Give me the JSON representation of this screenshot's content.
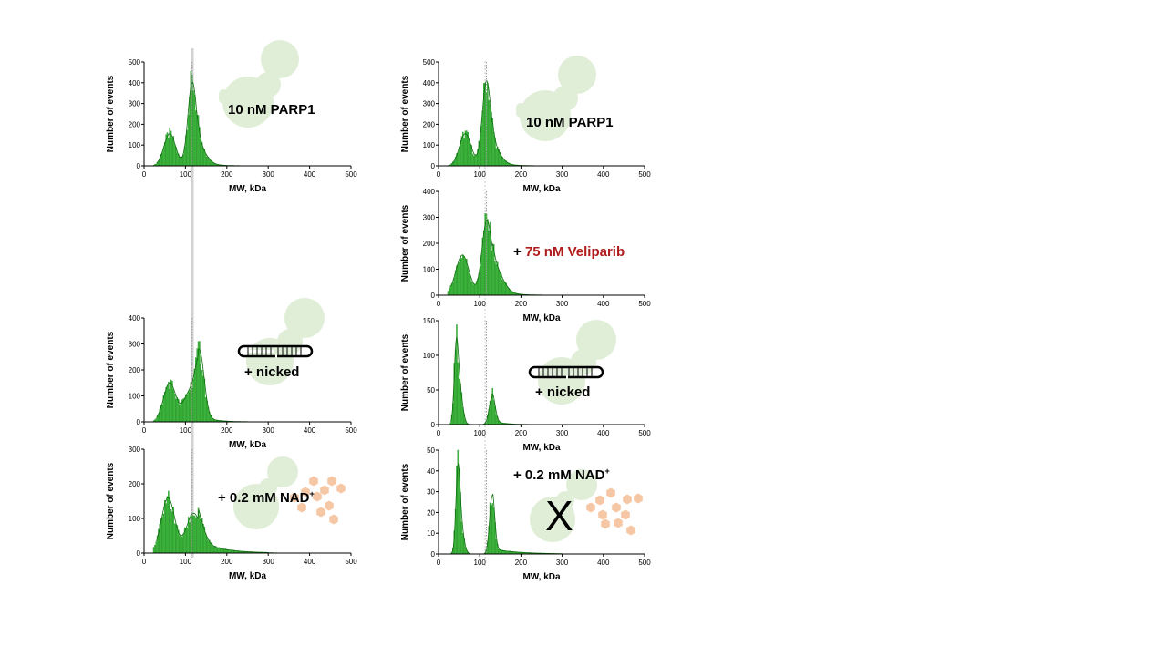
{
  "chart_data": [
    {
      "id": "left-top",
      "type": "bar",
      "xlabel": "MW, kDa",
      "ylabel": "Number of events",
      "xlim": [
        0,
        500
      ],
      "ylim": [
        0,
        500
      ],
      "xticks": [
        "0",
        "100",
        "200",
        "300",
        "400",
        "500"
      ],
      "yticks": [
        "0",
        "100",
        "200",
        "300",
        "400",
        "500"
      ],
      "reference_line_x": 116,
      "annotations": [
        {
          "text": "10 nM PARP1",
          "color": "#000000"
        }
      ],
      "peaks": [
        {
          "x": 62,
          "height": 155,
          "width": 14
        },
        {
          "x": 116,
          "height": 345,
          "width": 10
        },
        {
          "x": 130,
          "height": 80,
          "width": 18
        }
      ],
      "tail": {
        "height": 25,
        "decay": 28
      }
    },
    {
      "id": "right-top",
      "type": "bar",
      "xlabel": "MW, kDa",
      "ylabel": "Number of events",
      "xlim": [
        0,
        500
      ],
      "ylim": [
        0,
        500
      ],
      "xticks": [
        "0",
        "100",
        "200",
        "300",
        "400",
        "500"
      ],
      "yticks": [
        "0",
        "100",
        "200",
        "300",
        "400",
        "500"
      ],
      "reference_line_x": 116,
      "annotations": [
        {
          "text": "10 nM PARP1",
          "color": "#000000"
        }
      ],
      "peaks": [
        {
          "x": 65,
          "height": 155,
          "width": 14
        },
        {
          "x": 116,
          "height": 350,
          "width": 10
        },
        {
          "x": 130,
          "height": 80,
          "width": 18
        }
      ],
      "tail": {
        "height": 25,
        "decay": 28
      }
    },
    {
      "id": "right-veliparib",
      "type": "bar",
      "xlabel": "MW, kDa",
      "ylabel": "Number of events",
      "xlim": [
        0,
        500
      ],
      "ylim": [
        0,
        400
      ],
      "xticks": [
        "0",
        "100",
        "200",
        "300",
        "400",
        "500"
      ],
      "yticks": [
        "0",
        "100",
        "200",
        "300",
        "400"
      ],
      "reference_line_x": 116,
      "annotations": [
        {
          "text": "+ ",
          "color": "#000000"
        },
        {
          "text": "75 nM Veliparib",
          "color": "#b01c1c"
        }
      ],
      "peaks": [
        {
          "x": 58,
          "height": 155,
          "width": 16
        },
        {
          "x": 116,
          "height": 230,
          "width": 11
        },
        {
          "x": 135,
          "height": 90,
          "width": 20
        }
      ],
      "tail": {
        "height": 30,
        "decay": 30
      }
    },
    {
      "id": "left-nicked",
      "type": "bar",
      "xlabel": "MW, kDa",
      "ylabel": "Number of events",
      "xlim": [
        0,
        500
      ],
      "ylim": [
        0,
        400
      ],
      "xticks": [
        "0",
        "100",
        "200",
        "300",
        "400",
        "500"
      ],
      "yticks": [
        "0",
        "100",
        "200",
        "300",
        "400"
      ],
      "reference_line_x": 116,
      "annotations": [
        {
          "text": "+ nicked",
          "color": "#000000"
        }
      ],
      "peaks": [
        {
          "x": 62,
          "height": 150,
          "width": 15
        },
        {
          "x": 110,
          "height": 110,
          "width": 15
        },
        {
          "x": 135,
          "height": 225,
          "width": 11
        }
      ],
      "tail": {
        "height": 28,
        "decay": 30
      }
    },
    {
      "id": "right-nicked",
      "type": "bar",
      "xlabel": "MW, kDa",
      "ylabel": "Number of events",
      "xlim": [
        0,
        500
      ],
      "ylim": [
        0,
        150
      ],
      "xticks": [
        "0",
        "100",
        "200",
        "300",
        "400",
        "500"
      ],
      "yticks": [
        "0",
        "50",
        "100",
        "150"
      ],
      "reference_line_x": 116,
      "annotations": [
        {
          "text": "+ nicked",
          "color": "#000000"
        }
      ],
      "peaks": [
        {
          "x": 43,
          "height": 105,
          "width": 5
        },
        {
          "x": 52,
          "height": 45,
          "width": 7
        },
        {
          "x": 130,
          "height": 40,
          "width": 7
        }
      ],
      "tail": {
        "height": 6,
        "decay": 25
      }
    },
    {
      "id": "left-nad",
      "type": "bar",
      "xlabel": "MW, kDa",
      "ylabel": "Number of events",
      "xlim": [
        0,
        500
      ],
      "ylim": [
        0,
        300
      ],
      "xticks": [
        "0",
        "100",
        "200",
        "300",
        "400",
        "500"
      ],
      "yticks": [
        "0",
        "100",
        "200",
        "300"
      ],
      "reference_line_x": 116,
      "annotations": [
        {
          "text": "+ 0.2 mM NAD",
          "color": "#000000",
          "sup": "+"
        }
      ],
      "peaks": [
        {
          "x": 58,
          "height": 160,
          "width": 16
        },
        {
          "x": 120,
          "height": 115,
          "width": 18
        }
      ],
      "tail": {
        "height": 35,
        "decay": 55
      }
    },
    {
      "id": "right-nad",
      "type": "bar",
      "xlabel": "MW, kDa",
      "ylabel": "Number of events",
      "xlim": [
        0,
        500
      ],
      "ylim": [
        0,
        50
      ],
      "xticks": [
        "0",
        "100",
        "200",
        "300",
        "400",
        "500"
      ],
      "yticks": [
        "0",
        "10",
        "20",
        "30",
        "40",
        "50"
      ],
      "reference_line_x": 116,
      "annotations": [
        {
          "text": "+ 0.2 mM NAD",
          "color": "#000000",
          "sup": "+"
        },
        {
          "text": "X",
          "color": "#000000"
        }
      ],
      "peaks": [
        {
          "x": 47,
          "height": 37,
          "width": 5
        },
        {
          "x": 55,
          "height": 12,
          "width": 7
        },
        {
          "x": 130,
          "height": 28,
          "width": 6
        }
      ],
      "tail": {
        "height": 2.5,
        "decay": 60
      }
    }
  ],
  "colors": {
    "bar_fill": "#42c542",
    "bar_stroke": "#1e8c1e",
    "protein_shape": "#e0eed8",
    "nad_molecule": "#f6c7a4",
    "reference_line": "#b7b7b7",
    "dna_stroke": "#000000"
  },
  "icons": [
    "parp1-protein-shape",
    "nicked-dna-icon",
    "nad-molecule-icon"
  ]
}
